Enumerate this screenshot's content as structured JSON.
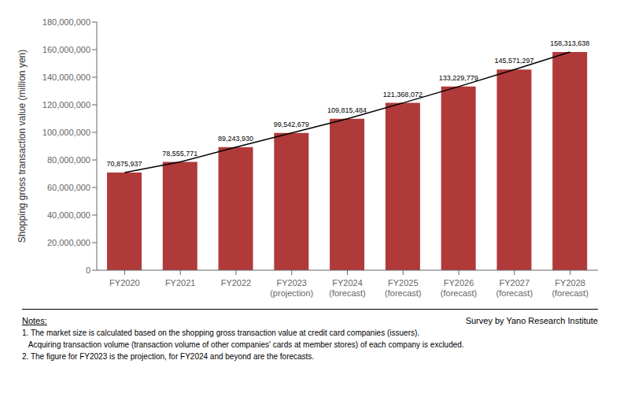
{
  "chart_data": {
    "type": "bar",
    "ylabel": "Shopping gross transaction value (million yen)",
    "categories": [
      "FY2020",
      "FY2021",
      "FY2022",
      "FY2023\n(projection)",
      "FY2024\n(forecast)",
      "FY2025\n(forecast)",
      "FY2026\n(forecast)",
      "FY2027\n(forecast)",
      "FY2028\n(forecast)"
    ],
    "series": [
      {
        "type": "bar",
        "color": "#b03a3a",
        "values": [
          70875937,
          78555771,
          89243930,
          99542679,
          109815484,
          121368072,
          133229779,
          145571297,
          158313638
        ],
        "value_labels": [
          "70,875,937",
          "78,555,771",
          "89,243,930",
          "99,542,679",
          "109,815,484",
          "121,368,072",
          "133,229,779",
          "145,571,297",
          "158,313,638"
        ]
      },
      {
        "type": "line",
        "color": "#000000",
        "values": [
          70875937,
          78555771,
          89243930,
          99542679,
          109815484,
          121368072,
          133229779,
          145571297,
          158313638
        ]
      }
    ],
    "data_labels": true,
    "ylim": [
      0,
      180000000
    ],
    "yticks": [
      0,
      {
        "value": 20000000,
        "label": "20,000,000"
      },
      {
        "value": 40000000,
        "label": "40,000,000"
      },
      {
        "value": 60000000,
        "label": "60,000,000"
      },
      {
        "value": 80000000,
        "label": "80,000,000"
      },
      {
        "value": 100000000,
        "label": "100,000,000"
      },
      {
        "value": 120000000,
        "label": "120,000,000"
      },
      {
        "value": 140000000,
        "label": "140,000,000"
      },
      {
        "value": 160000000,
        "label": "160,000,000"
      },
      {
        "value": 180000000,
        "label": "180,000,000"
      }
    ],
    "grid": false,
    "note_title": "Notes:",
    "notes": [
      "1. The market size is calculated based on the shopping gross transaction value at credit card companies (issuers).",
      "   Acquiring transaction volume (transaction volume of other companies' cards at member stores) of each company is excluded.",
      "2. The figure for FY2023 is the projection, for FY2024 and beyond are the forecasts."
    ],
    "source": "Survey by Yano Research Institute"
  }
}
